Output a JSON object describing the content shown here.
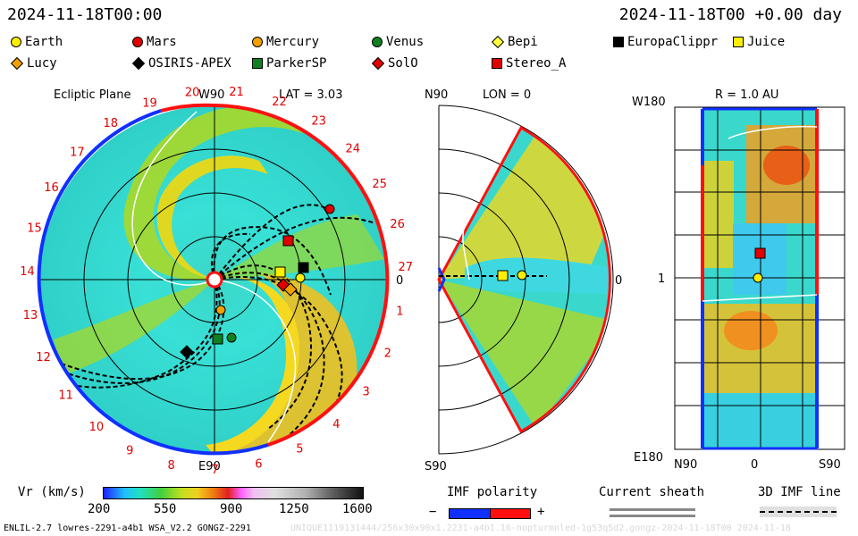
{
  "header": {
    "date_left": "2024-11-18T00:00",
    "date_right": "2024-11-18T00 +0.00 day"
  },
  "legend": [
    {
      "label": "Earth",
      "color": "#ffee00",
      "shape": "circle"
    },
    {
      "label": "Mars",
      "color": "#e00000",
      "shape": "circle"
    },
    {
      "label": "Mercury",
      "color": "#f0a000",
      "shape": "circle"
    },
    {
      "label": "Venus",
      "color": "#108020",
      "shape": "circle"
    },
    {
      "label": "Bepi",
      "color": "#ffff40",
      "shape": "diamond"
    },
    {
      "label": "EuropaClippr",
      "color": "#000000",
      "shape": "square"
    },
    {
      "label": "Juice",
      "color": "#ffee00",
      "shape": "square"
    },
    {
      "label": "Lucy",
      "color": "#f0a000",
      "shape": "diamond"
    },
    {
      "label": "OSIRIS-APEX",
      "color": "#000000",
      "shape": "diamond"
    },
    {
      "label": "ParkerSP",
      "color": "#108020",
      "shape": "square"
    },
    {
      "label": "SolO",
      "color": "#e00000",
      "shape": "diamond"
    },
    {
      "label": "Stereo_A",
      "color": "#e00000",
      "shape": "square"
    }
  ],
  "ecliptic": {
    "title": "Ecliptic Plane",
    "top_label": "W90",
    "bottom_label": "E90",
    "lat_label": "LAT = 3.03",
    "zero_label": "0",
    "carrington_ticks": [
      "1",
      "2",
      "3",
      "4",
      "5",
      "6",
      "7",
      "8",
      "9",
      "10",
      "11",
      "12",
      "13",
      "14",
      "15",
      "16",
      "17",
      "18",
      "19",
      "20",
      "21",
      "22",
      "23",
      "24",
      "25",
      "26",
      "27"
    ]
  },
  "meridional": {
    "lon_label": "LON = 0",
    "top_label": "N90",
    "bottom_label": "S90",
    "zero_label": "0"
  },
  "sphere": {
    "title": "R = 1.0 AU",
    "top_label": "W180",
    "bottom_label": "E180",
    "mid_label": "1",
    "x_labels": [
      "N90",
      "0",
      "S90"
    ]
  },
  "colorbar": {
    "label": "Vr (km/s)",
    "ticks": [
      "200",
      "550",
      "900",
      "1250",
      "1600"
    ]
  },
  "imf": {
    "label": "IMF polarity",
    "minus": "−",
    "plus": "+"
  },
  "sheath": {
    "label": "Current sheath"
  },
  "imfline": {
    "label": "3D IMF line"
  },
  "footer": {
    "left": "ENLIL-2.7 lowres-2291-a4b1 WSA_V2.2 GONGZ-2291",
    "right": "UNIQUE1119131444/256x30x90x1.2231-a4b1.16-nopturmnled-1g53q5d2.gongz-2024-11-18T00 2024-11-18"
  },
  "colors": {
    "outward": "#ff1010",
    "inward": "#1030ff",
    "sheath": "#888888"
  }
}
